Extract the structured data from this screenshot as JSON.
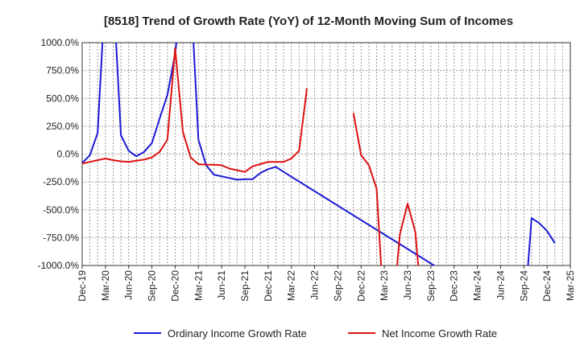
{
  "chart_data": {
    "type": "line",
    "title": "[8518]  Trend of Growth Rate (YoY) of 12-Month Moving Sum of Incomes",
    "xlabel": "",
    "ylabel": "",
    "ylim": [
      -1000,
      1000
    ],
    "y_ticks": [
      "1000.0%",
      "750.0%",
      "500.0%",
      "250.0%",
      "0.0%",
      "-250.0%",
      "-500.0%",
      "-750.0%",
      "-1000.0%"
    ],
    "y_tick_values": [
      1000,
      750,
      500,
      250,
      0,
      -250,
      -500,
      -750,
      -1000
    ],
    "x_ticks": [
      "Dec-19",
      "Mar-20",
      "Jun-20",
      "Sep-20",
      "Dec-20",
      "Mar-21",
      "Jun-21",
      "Sep-21",
      "Dec-21",
      "Mar-22",
      "Jun-22",
      "Sep-22",
      "Dec-22",
      "Mar-23",
      "Jun-23",
      "Sep-23",
      "Dec-23",
      "Mar-24",
      "Jun-24",
      "Sep-24",
      "Dec-24",
      "Mar-25"
    ],
    "grid": true,
    "legend_position": "bottom",
    "series": [
      {
        "name": "Ordinary Income Growth Rate",
        "color": "#1a1ad6",
        "points": [
          [
            "Dec-19",
            -80
          ],
          [
            "Jan-20",
            -10
          ],
          [
            "Feb-20",
            190
          ],
          [
            "Mar-20",
            1500
          ],
          [
            "Apr-20",
            1500
          ],
          [
            "May-20",
            170
          ],
          [
            "Jun-20",
            30
          ],
          [
            "Jul-20",
            -20
          ],
          [
            "Aug-20",
            20
          ],
          [
            "Sep-20",
            100
          ],
          [
            "Oct-20",
            320
          ],
          [
            "Nov-20",
            530
          ],
          [
            "Dec-20",
            900
          ],
          [
            "Jan-21",
            1500
          ],
          [
            "Feb-21",
            1500
          ],
          [
            "Mar-21",
            130
          ],
          [
            "Apr-21",
            -100
          ],
          [
            "May-21",
            -185
          ],
          [
            "Jun-21",
            -200
          ],
          [
            "Jul-21",
            -215
          ],
          [
            "Aug-21",
            -230
          ],
          [
            "Sep-21",
            -225
          ],
          [
            "Oct-21",
            -225
          ],
          [
            "Nov-21",
            -170
          ],
          [
            "Dec-21",
            -135
          ],
          [
            "Jan-22",
            -115
          ],
          [
            "Feb-22",
            -160
          ],
          [
            "Sep-24",
            -1500
          ],
          [
            "Oct-24",
            -575
          ],
          [
            "Nov-24",
            -620
          ],
          [
            "Dec-24",
            -690
          ],
          [
            "Jan-25",
            -800
          ]
        ]
      },
      {
        "name": "Net Income Growth Rate",
        "color": "#dd1111",
        "points": [
          [
            "Dec-19",
            -85
          ],
          [
            "Jan-20",
            -70
          ],
          [
            "Feb-20",
            -55
          ],
          [
            "Mar-20",
            -40
          ],
          [
            "Apr-20",
            -55
          ],
          [
            "May-20",
            -65
          ],
          [
            "Jun-20",
            -70
          ],
          [
            "Jul-20",
            -60
          ],
          [
            "Aug-20",
            -50
          ],
          [
            "Sep-20",
            -30
          ],
          [
            "Oct-20",
            20
          ],
          [
            "Nov-20",
            130
          ],
          [
            "Dec-20",
            950
          ],
          [
            "Jan-21",
            200
          ],
          [
            "Feb-21",
            -30
          ],
          [
            "Mar-21",
            -90
          ],
          [
            "Apr-21",
            -95
          ],
          [
            "May-21",
            -95
          ],
          [
            "Jun-21",
            -100
          ],
          [
            "Jul-21",
            -130
          ],
          [
            "Aug-21",
            -145
          ],
          [
            "Sep-21",
            -160
          ],
          [
            "Oct-21",
            -110
          ],
          [
            "Nov-21",
            -90
          ],
          [
            "Dec-21",
            -70
          ],
          [
            "Jan-22",
            -70
          ],
          [
            "Feb-22",
            -70
          ],
          [
            "Mar-22",
            -40
          ],
          [
            "Apr-22",
            30
          ],
          [
            "May-22",
            590
          ],
          null,
          [
            "Nov-22",
            370
          ],
          [
            "Dec-22",
            -10
          ],
          [
            "Jan-23",
            -100
          ],
          [
            "Feb-23",
            -310
          ],
          [
            "Mar-23",
            -1500
          ],
          [
            "Apr-23",
            -1500
          ],
          [
            "May-23",
            -720
          ],
          [
            "Jun-23",
            -445
          ],
          [
            "Jul-23",
            -700
          ],
          [
            "Aug-23",
            -1500
          ]
        ]
      }
    ]
  }
}
